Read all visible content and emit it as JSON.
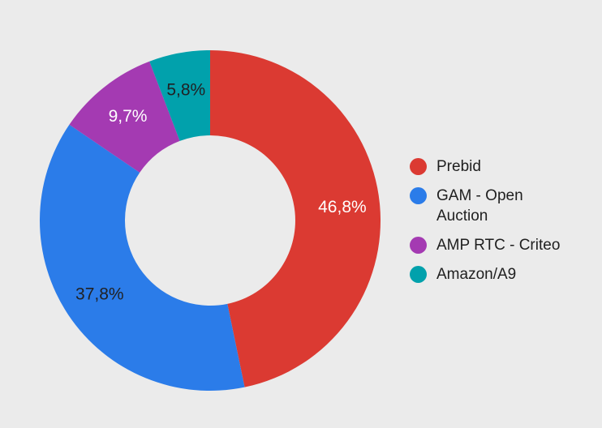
{
  "background_color": "#EBEBEB",
  "legend": {
    "position": "right",
    "text_color": "#1F1F1F"
  },
  "chart_data": {
    "type": "pie",
    "donut": true,
    "hole_ratio": 0.5,
    "start_angle_deg": 0,
    "direction": "clockwise",
    "background_color": "#EBEBEB",
    "legend_position": "right",
    "title": "",
    "slices": [
      {
        "id": "prebid",
        "label": "Prebid",
        "label_lines": [
          "Prebid"
        ],
        "value": 46.8,
        "pct_label": "46,8%",
        "color": "#DB3A32",
        "label_color": "#FFFFFF"
      },
      {
        "id": "gam-open-auction",
        "label": "GAM - Open Auction",
        "label_lines": [
          "GAM - Open",
          "Auction"
        ],
        "value": 37.8,
        "pct_label": "37,8%",
        "color": "#2B7CE9",
        "label_color": "#202124"
      },
      {
        "id": "amp-rtc-criteo",
        "label": "AMP RTC - Criteo",
        "label_lines": [
          "AMP RTC - Criteo"
        ],
        "value": 9.7,
        "pct_label": "9,7%",
        "color": "#A43AB2",
        "label_color": "#FFFFFF"
      },
      {
        "id": "amazon-a9",
        "label": "Amazon/A9",
        "label_lines": [
          "Amazon/A9"
        ],
        "value": 5.8,
        "pct_label": "5,8%",
        "color": "#01A1AC",
        "label_color": "#202124"
      }
    ]
  }
}
